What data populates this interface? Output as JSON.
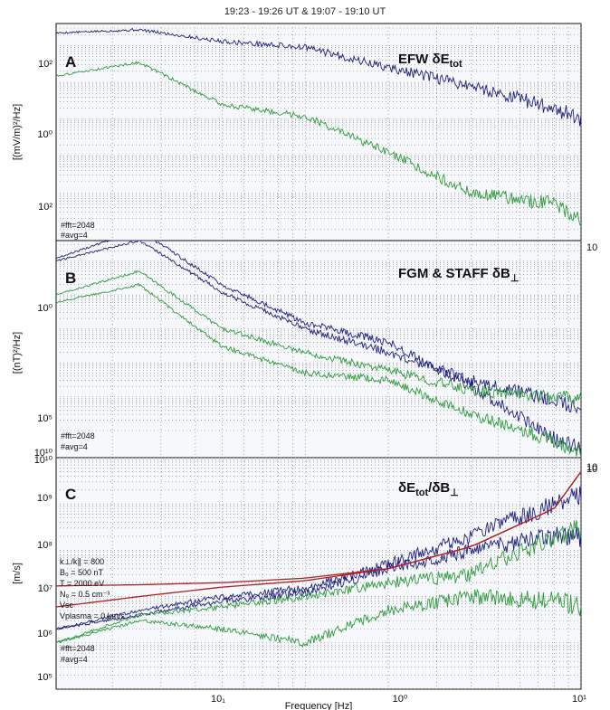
{
  "figure": {
    "title": "19:23 - 19:26 UT  &  19:07 - 19:10 UT",
    "xlabel": "Frequency [Hz]"
  },
  "colors": {
    "blue": "#1f1f7a",
    "green": "#2f9a3a",
    "red": "#b01f1f"
  },
  "panels": [
    {
      "letter": "A",
      "label": "EFW δE",
      "label_sub": "tot",
      "ylabel": "[(mV/m)²/Hz]",
      "ytick_labels": [
        "10²",
        "10⁰",
        "10²"
      ],
      "corner_tick": "10",
      "notes": [
        "#fft=2048",
        "#avg=4"
      ]
    },
    {
      "letter": "B",
      "label": "FGM & STAFF δB",
      "label_sub": "⊥",
      "ylabel": "[(nT)²/Hz]",
      "ytick_labels": [
        "10⁰",
        "10⁵",
        "10¹⁰"
      ],
      "corner_tick": "10",
      "notes": [
        "#fft=2048",
        "#avg=4"
      ]
    },
    {
      "letter": "C",
      "label": "δE",
      "label_sub": "tot",
      "label_mid": "/δB",
      "label_sub2": "⊥",
      "ylabel": "[m/s]",
      "ytick_labels": [
        "10¹⁰",
        "10⁹",
        "10⁸",
        "10⁷",
        "10⁶",
        "10⁵"
      ],
      "corner_tick": "10",
      "params": [
        "k⊥/k∥ = 800",
        "B₀ = 500 nT",
        "T = 2000 eV",
        "N₀ = 0.5 cm⁻³",
        "Vsc",
        "Vplasma = 0 km/s"
      ],
      "notes": [
        "#fft=2048",
        "#avg=4"
      ]
    }
  ],
  "chart_data": [
    {
      "type": "line",
      "title": "EFW δEtot",
      "ylabel": "[(mV/m)²/Hz]",
      "xlabel": "",
      "x_scale": "log",
      "y_scale": "log",
      "series": [
        {
          "color": "#1f1f7a",
          "x": [
            0.125,
            0.25,
            0.5,
            1,
            2,
            4,
            8,
            10
          ],
          "y": [
            220.0,
            270.0,
            130.0,
            90.0,
            25.0,
            8,
            2,
            1
          ]
        },
        {
          "color": "#2f9a3a",
          "x": [
            0.125,
            0.25,
            0.5,
            1,
            2,
            4,
            8,
            10
          ],
          "y": [
            15.0,
            35.0,
            2.5,
            1.2,
            0.12,
            0.01,
            0.005,
            0.002
          ]
        }
      ]
    },
    {
      "type": "line",
      "title": "FGM & STAFF δB⊥",
      "ylabel": "[(nT)²/Hz]",
      "xlabel": "",
      "x_scale": "log",
      "y_scale": "log",
      "series": [
        {
          "color": "#1f1f7a",
          "x": [
            0.125,
            0.25,
            0.5,
            1,
            2,
            4,
            8,
            10
          ],
          "y": [
            12.0,
            80.0,
            2,
            0.15,
            0.04,
            0.002,
            6e-05,
            3e-05
          ]
        },
        {
          "color": "#1f1f7a",
          "x": [
            0.125,
            0.25,
            0.5,
            1,
            2,
            4,
            8,
            10
          ],
          "y": [
            10.0,
            40.0,
            1.2,
            0.1,
            0.02,
            0.003,
            0.0008,
            0.0004
          ]
        },
        {
          "color": "#2f9a3a",
          "x": [
            0.125,
            0.25,
            0.5,
            1,
            2,
            4,
            8,
            10
          ],
          "y": [
            1,
            5,
            0.1,
            0.02,
            0.006,
            0.0015,
            0.001,
            0.001
          ]
        },
        {
          "color": "#2f9a3a",
          "x": [
            0.125,
            0.25,
            0.5,
            1,
            2,
            4,
            8,
            10
          ],
          "y": [
            0.6,
            2,
            0.03,
            0.005,
            0.003,
            0.0003,
            5e-05,
            2e-05
          ]
        }
      ]
    },
    {
      "type": "line",
      "title": "δEtot/δB⊥",
      "ylabel": "[m/s]",
      "xlabel": "Frequency [Hz]",
      "x_scale": "log",
      "y_scale": "log",
      "ylim": [
        100000.0,
        10000000000.0
      ],
      "series": [
        {
          "color": "#1f1f7a",
          "x": [
            0.125,
            0.25,
            0.5,
            1,
            2,
            4,
            8,
            10
          ],
          "y": [
            2000000.0,
            5000000.0,
            10000000.0,
            15000000.0,
            50000000.0,
            200000000.0,
            1000000000.0,
            1500000000.0
          ]
        },
        {
          "color": "#1f1f7a",
          "x": [
            0.125,
            0.25,
            0.5,
            1,
            2,
            4,
            8,
            10
          ],
          "y": [
            2000000.0,
            4000000.0,
            8000000.0,
            12000000.0,
            40000000.0,
            100000000.0,
            200000000.0,
            200000000.0
          ]
        },
        {
          "color": "#2f9a3a",
          "x": [
            0.125,
            0.25,
            0.5,
            1,
            2,
            4,
            8,
            10
          ],
          "y": [
            1000000.0,
            4000000.0,
            6000000.0,
            10000000.0,
            20000000.0,
            30000000.0,
            200000000.0,
            300000000.0
          ]
        },
        {
          "color": "#2f9a3a",
          "x": [
            0.125,
            0.25,
            0.5,
            1,
            2,
            4,
            8,
            10
          ],
          "y": [
            1000000.0,
            3000000.0,
            2000000.0,
            1000000.0,
            5000000.0,
            10000000.0,
            8000000.0,
            6000000.0
          ]
        },
        {
          "color": "#b01f1f",
          "x": [
            0.125,
            0.25,
            0.5,
            1,
            2,
            4,
            8,
            10
          ],
          "y": [
            17000000.0,
            18000000.0,
            20000000.0,
            25000000.0,
            40000000.0,
            120000000.0,
            800000000.0,
            5000000000.0
          ]
        },
        {
          "color": "#b01f1f",
          "x": [
            0.125,
            0.25,
            0.5,
            1,
            2,
            4,
            8,
            10
          ],
          "y": [
            6000000.0,
            10000000.0,
            16000000.0,
            22000000.0,
            40000000.0,
            120000000.0,
            800000000.0,
            5000000000.0
          ]
        }
      ]
    }
  ],
  "x_axis": {
    "tick_labels": [
      "10₁",
      "10⁰",
      "10¹"
    ]
  }
}
